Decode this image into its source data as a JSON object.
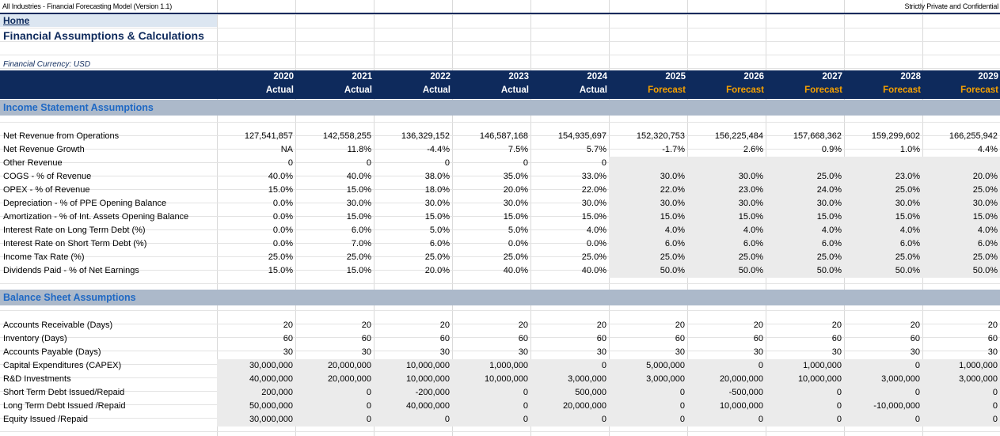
{
  "top": {
    "model_title": "All Industries - Financial Forecasting Model (Version 1.1)",
    "confidentiality": "Strictly Private and Confidential"
  },
  "home_link": "Home",
  "page_title": "Financial Assumptions & Calculations",
  "currency_note": "Financial Currency: USD",
  "years": [
    {
      "year": "2020",
      "status": "Actual"
    },
    {
      "year": "2021",
      "status": "Actual"
    },
    {
      "year": "2022",
      "status": "Actual"
    },
    {
      "year": "2023",
      "status": "Actual"
    },
    {
      "year": "2024",
      "status": "Actual"
    },
    {
      "year": "2025",
      "status": "Forecast"
    },
    {
      "year": "2026",
      "status": "Forecast"
    },
    {
      "year": "2027",
      "status": "Forecast"
    },
    {
      "year": "2028",
      "status": "Forecast"
    },
    {
      "year": "2029",
      "status": "Forecast"
    }
  ],
  "colors": {
    "header_bg": "#0e2a5c",
    "forecast_text": "#f5a000",
    "section_bg": "#acb9ca",
    "section_text": "#1e68c4",
    "input_bg": "#ebebeb"
  },
  "income": {
    "title": "Income Statement Assumptions",
    "rows": [
      {
        "label": "Net Revenue from Operations",
        "values": [
          "127,541,857",
          "142,558,255",
          "136,329,152",
          "146,587,168",
          "154,935,697",
          "152,320,753",
          "156,225,484",
          "157,668,362",
          "159,299,602",
          "166,255,942"
        ]
      },
      {
        "label": "Net Revenue Growth",
        "values": [
          "NA",
          "11.8%",
          "-4.4%",
          "7.5%",
          "5.7%",
          "-1.7%",
          "2.6%",
          "0.9%",
          "1.0%",
          "4.4%"
        ]
      },
      {
        "label": "Other Revenue",
        "values": [
          "0",
          "0",
          "0",
          "0",
          "0",
          "",
          "",
          "",
          "",
          ""
        ]
      },
      {
        "label": "COGS - % of Revenue",
        "values": [
          "40.0%",
          "40.0%",
          "38.0%",
          "35.0%",
          "33.0%",
          "30.0%",
          "30.0%",
          "25.0%",
          "23.0%",
          "20.0%"
        ]
      },
      {
        "label": "OPEX - % of Revenue",
        "values": [
          "15.0%",
          "15.0%",
          "18.0%",
          "20.0%",
          "22.0%",
          "22.0%",
          "23.0%",
          "24.0%",
          "25.0%",
          "25.0%"
        ]
      },
      {
        "label": "Depreciation - % of PPE Opening Balance",
        "values": [
          "0.0%",
          "30.0%",
          "30.0%",
          "30.0%",
          "30.0%",
          "30.0%",
          "30.0%",
          "30.0%",
          "30.0%",
          "30.0%"
        ]
      },
      {
        "label": "Amortization - % of Int. Assets Opening Balance",
        "values": [
          "0.0%",
          "15.0%",
          "15.0%",
          "15.0%",
          "15.0%",
          "15.0%",
          "15.0%",
          "15.0%",
          "15.0%",
          "15.0%"
        ]
      },
      {
        "label": "Interest Rate on Long Term Debt (%)",
        "values": [
          "0.0%",
          "6.0%",
          "5.0%",
          "5.0%",
          "4.0%",
          "4.0%",
          "4.0%",
          "4.0%",
          "4.0%",
          "4.0%"
        ]
      },
      {
        "label": "Interest Rate on Short Term Debt (%)",
        "values": [
          "0.0%",
          "7.0%",
          "6.0%",
          "0.0%",
          "0.0%",
          "6.0%",
          "6.0%",
          "6.0%",
          "6.0%",
          "6.0%"
        ]
      },
      {
        "label": "Income Tax Rate (%)",
        "values": [
          "25.0%",
          "25.0%",
          "25.0%",
          "25.0%",
          "25.0%",
          "25.0%",
          "25.0%",
          "25.0%",
          "25.0%",
          "25.0%"
        ]
      },
      {
        "label": "Dividends Paid - % of Net Earnings",
        "values": [
          "15.0%",
          "15.0%",
          "20.0%",
          "40.0%",
          "40.0%",
          "50.0%",
          "50.0%",
          "50.0%",
          "50.0%",
          "50.0%"
        ]
      }
    ]
  },
  "balance": {
    "title": "Balance Sheet Assumptions",
    "rows": [
      {
        "label": "Accounts Receivable (Days)",
        "values": [
          "20",
          "20",
          "20",
          "20",
          "20",
          "20",
          "20",
          "20",
          "20",
          "20"
        ]
      },
      {
        "label": "Inventory (Days)",
        "values": [
          "60",
          "60",
          "60",
          "60",
          "60",
          "60",
          "60",
          "60",
          "60",
          "60"
        ]
      },
      {
        "label": "Accounts Payable (Days)",
        "values": [
          "30",
          "30",
          "30",
          "30",
          "30",
          "30",
          "30",
          "30",
          "30",
          "30"
        ]
      },
      {
        "label": "Capital Expenditures (CAPEX)",
        "values": [
          "30,000,000",
          "20,000,000",
          "10,000,000",
          "1,000,000",
          "0",
          "5,000,000",
          "0",
          "1,000,000",
          "0",
          "1,000,000"
        ]
      },
      {
        "label": "R&D Investments",
        "values": [
          "40,000,000",
          "20,000,000",
          "10,000,000",
          "10,000,000",
          "3,000,000",
          "3,000,000",
          "20,000,000",
          "10,000,000",
          "3,000,000",
          "3,000,000"
        ]
      },
      {
        "label": "Short Term Debt Issued/Repaid",
        "values": [
          "200,000",
          "0",
          "-200,000",
          "0",
          "500,000",
          "0",
          "-500,000",
          "0",
          "0",
          "0"
        ]
      },
      {
        "label": "Long Term Debt Issued /Repaid",
        "values": [
          "50,000,000",
          "0",
          "40,000,000",
          "0",
          "20,000,000",
          "0",
          "10,000,000",
          "0",
          "-10,000,000",
          "0"
        ]
      },
      {
        "label": "Equity Issued /Repaid",
        "values": [
          "30,000,000",
          "0",
          "0",
          "0",
          "0",
          "0",
          "0",
          "0",
          "0",
          "0"
        ]
      }
    ]
  }
}
